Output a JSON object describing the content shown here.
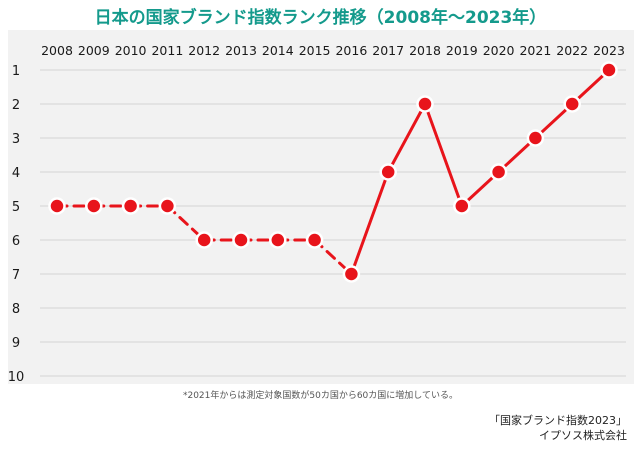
{
  "title": "日本の国家ブランド指数ランク推移（2008年〜2023年）",
  "footnote": "*2021年からは測定対象国数が50カ国から60カ国に増加している。",
  "source": {
    "line1": "「国家ブランド指数2023」",
    "line2": "イプソス株式会社"
  },
  "colors": {
    "title": "#149a8c",
    "series": "#e8141b",
    "background": "#f2f2f2"
  },
  "chart_data": {
    "type": "line",
    "title": "日本の国家ブランド指数ランク推移（2008年〜2023年）",
    "categories": [
      "2008",
      "2009",
      "2010",
      "2011",
      "2012",
      "2013",
      "2014",
      "2015",
      "2016",
      "2017",
      "2018",
      "2019",
      "2020",
      "2021",
      "2022",
      "2023"
    ],
    "values": [
      5,
      5,
      5,
      5,
      6,
      6,
      6,
      6,
      7,
      4,
      2,
      5,
      4,
      3,
      2,
      1
    ],
    "dashed_until_index": 8,
    "y_ticks": [
      "1",
      "2",
      "3",
      "4",
      "5",
      "6",
      "7",
      "8",
      "9",
      "10"
    ],
    "ylim": [
      1,
      10
    ],
    "y_inverted": true,
    "xlabel": "",
    "ylabel": "",
    "grid": true,
    "legend": "none"
  }
}
